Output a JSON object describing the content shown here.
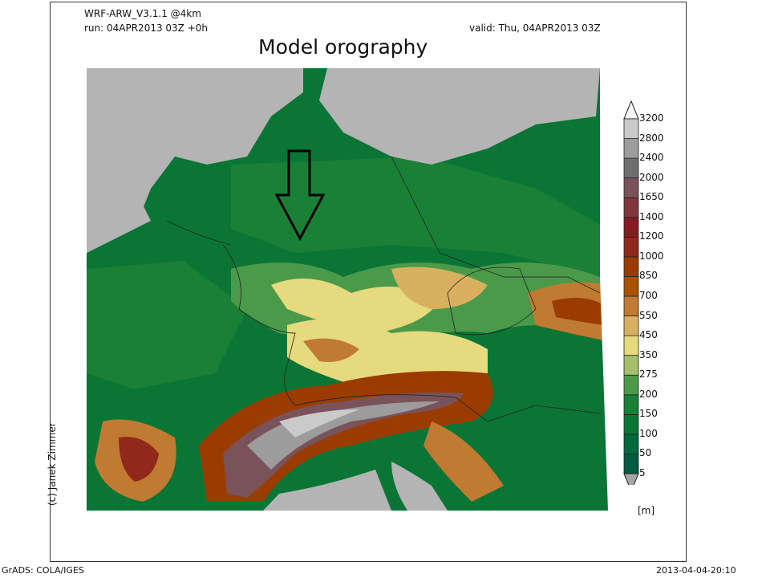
{
  "header": {
    "model": "WRF-ARW_V3.1.1 @4km",
    "run": "run: 04APR2013 03Z +0h",
    "valid": "valid: Thu, 04APR2013 03Z",
    "title": "Model orography"
  },
  "credit": "(c) Janek Zimmer",
  "footer": {
    "left": "GrADS: COLA/IGES",
    "right": "2013-04-04-20:10"
  },
  "colorbar": {
    "unit": "[m]",
    "ticks": [
      "5",
      "50",
      "100",
      "150",
      "200",
      "275",
      "350",
      "450",
      "550",
      "700",
      "850",
      "1000",
      "1200",
      "1400",
      "1650",
      "2000",
      "2400",
      "2800",
      "3200"
    ],
    "colors": [
      "#a6a6a6",
      "#005c40",
      "#006a3c",
      "#0b7536",
      "#1a8036",
      "#4b9a4a",
      "#a3c06a",
      "#e6da7e",
      "#d8b060",
      "#c07a32",
      "#a85200",
      "#9a3c00",
      "#90281c",
      "#861c22",
      "#80363a",
      "#7a525a",
      "#6e6e6e",
      "#9c9c9c",
      "#cacaca",
      "#f4f4f4"
    ]
  },
  "map": {
    "sea_color": "#b4b4b4",
    "annotation": "arrow-down"
  }
}
